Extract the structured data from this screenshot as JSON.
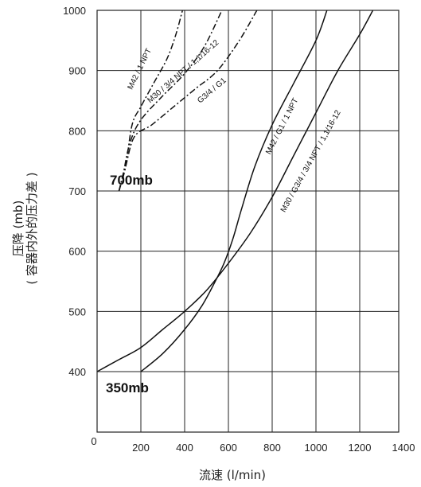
{
  "chart_data": {
    "type": "line",
    "xlabel": "流速 (l/min)",
    "ylabel": "压降 (mb)",
    "ylabel_sub": "( 容器内外的压力差 )",
    "xlim": [
      100,
      1400
    ],
    "ylim": [
      300,
      1000
    ],
    "x_ticks": [
      200,
      400,
      600,
      800,
      1000,
      1200,
      1400
    ],
    "x_tick_labels": [
      "200",
      "400",
      "600",
      "800",
      "1000",
      "1200",
      "1400"
    ],
    "x_origin_label": "0",
    "y_ticks": [
      400,
      500,
      600,
      700,
      800,
      900,
      1000
    ],
    "y_tick_labels": [
      "400",
      "500",
      "600",
      "700",
      "800",
      "900",
      "1000"
    ],
    "grid": true,
    "annotations": [
      {
        "text": "700mb"
      },
      {
        "text": "350mb"
      }
    ],
    "series": [
      {
        "name": "M42 / 1 NPT",
        "style": "dashdot",
        "color": "#111111",
        "points": [
          [
            100,
            700
          ],
          [
            130,
            740
          ],
          [
            160,
            810
          ],
          [
            200,
            840
          ],
          [
            260,
            880
          ],
          [
            320,
            920
          ],
          [
            360,
            960
          ],
          [
            390,
            1000
          ]
        ]
      },
      {
        "name": "M30 / 3/4 NPT / 1,1/16-12",
        "style": "dashdot",
        "color": "#111111",
        "points": [
          [
            100,
            700
          ],
          [
            120,
            730
          ],
          [
            150,
            780
          ],
          [
            200,
            818
          ],
          [
            300,
            858
          ],
          [
            400,
            895
          ],
          [
            490,
            940
          ],
          [
            570,
            1000
          ]
        ]
      },
      {
        "name": "G3/4 / G1",
        "style": "dashdot",
        "color": "#111111",
        "points": [
          [
            100,
            700
          ],
          [
            130,
            740
          ],
          [
            170,
            790
          ],
          [
            250,
            810
          ],
          [
            350,
            840
          ],
          [
            450,
            870
          ],
          [
            550,
            900
          ],
          [
            650,
            950
          ],
          [
            730,
            1000
          ]
        ]
      },
      {
        "name": "M42 / G1 / 1 NPT",
        "style": "solid",
        "color": "#111111",
        "points": [
          [
            200,
            400
          ],
          [
            300,
            430
          ],
          [
            400,
            470
          ],
          [
            480,
            510
          ],
          [
            540,
            550
          ],
          [
            580,
            580
          ],
          [
            620,
            620
          ],
          [
            660,
            670
          ],
          [
            720,
            740
          ],
          [
            800,
            810
          ],
          [
            900,
            880
          ],
          [
            1000,
            950
          ],
          [
            1050,
            1000
          ]
        ]
      },
      {
        "name": "M30 / G3/4 / 3/4 NPT / 1,1/16-12",
        "style": "solid",
        "color": "#111111",
        "points": [
          [
            0,
            400
          ],
          [
            100,
            420
          ],
          [
            200,
            440
          ],
          [
            300,
            470
          ],
          [
            400,
            500
          ],
          [
            500,
            535
          ],
          [
            600,
            580
          ],
          [
            700,
            630
          ],
          [
            800,
            690
          ],
          [
            900,
            760
          ],
          [
            1000,
            830
          ],
          [
            1100,
            900
          ],
          [
            1200,
            960
          ],
          [
            1260,
            1000
          ]
        ]
      }
    ]
  }
}
